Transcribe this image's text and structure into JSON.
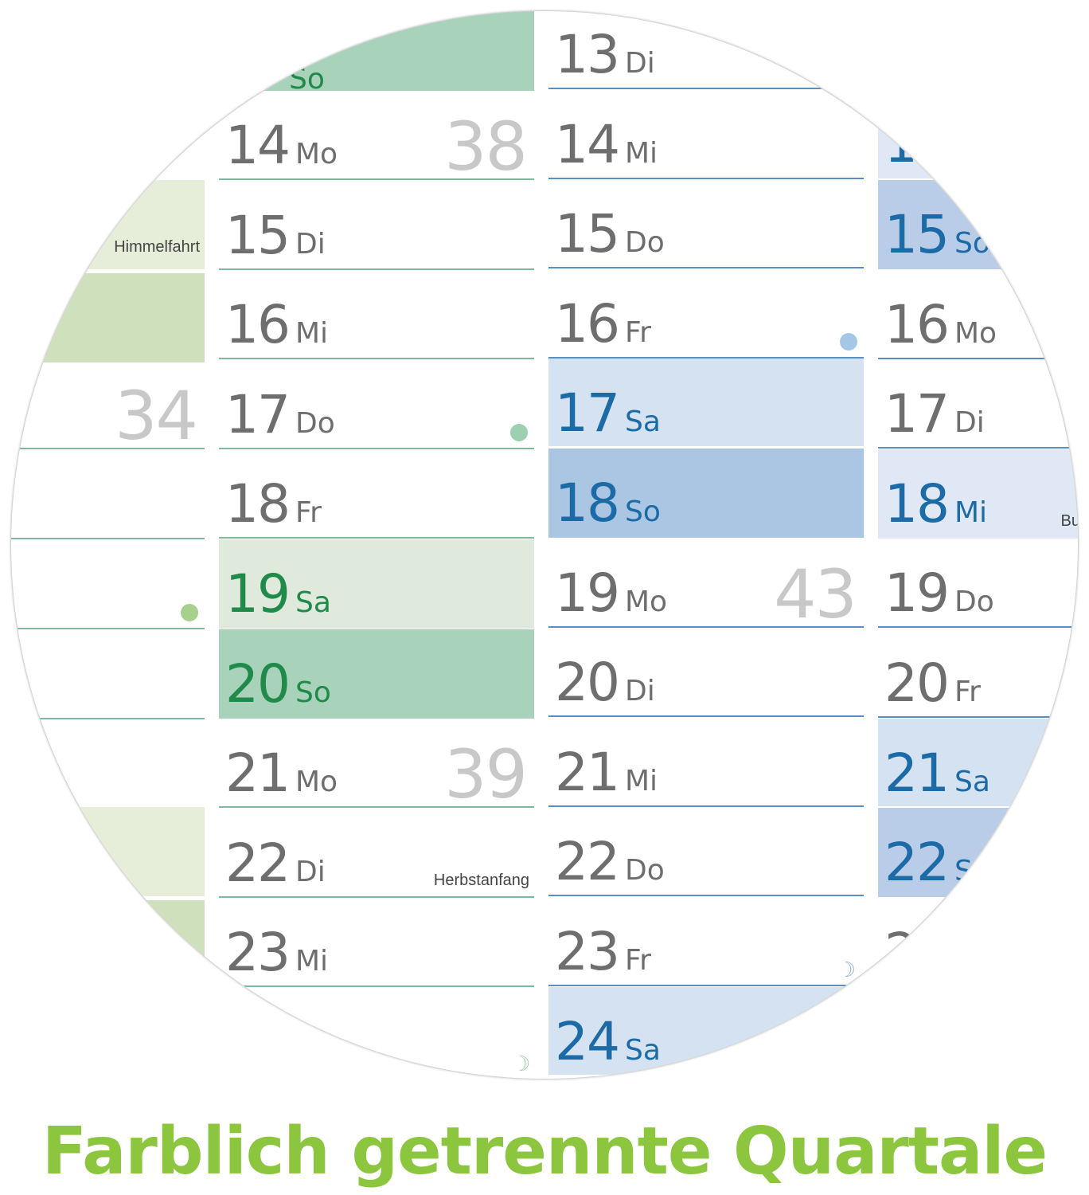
{
  "colors": {
    "green_sat": "#dfeadc",
    "green_sun": "#a9d2bb",
    "green_light": "#e6eed9",
    "green_mid": "#cfe0bc",
    "blue_sat": "#d5e2f1",
    "blue_sun": "#aac6e2",
    "green_line": "#7fb89a",
    "blue_line": "#5a8fc2",
    "green_dot": "#9cd0b0",
    "blue_dot": "#a5c7e6"
  },
  "col_prev": {
    "holiday": "Himmelfahrt",
    "week": "34"
  },
  "col_sep": {
    "top_day": "So",
    "days": [
      {
        "n": "14",
        "d": "Mo",
        "wk": "38"
      },
      {
        "n": "15",
        "d": "Di"
      },
      {
        "n": "16",
        "d": "Mi"
      },
      {
        "n": "17",
        "d": "Do",
        "dot": true
      },
      {
        "n": "18",
        "d": "Fr"
      },
      {
        "n": "19",
        "d": "Sa"
      },
      {
        "n": "20",
        "d": "So"
      },
      {
        "n": "21",
        "d": "Mo",
        "wk": "39"
      },
      {
        "n": "22",
        "d": "Di",
        "note": "Herbstanfang"
      },
      {
        "n": "23",
        "d": "Mi"
      }
    ],
    "moon": "☽"
  },
  "col_oct": {
    "days": [
      {
        "n": "13",
        "d": "Di"
      },
      {
        "n": "14",
        "d": "Mi"
      },
      {
        "n": "15",
        "d": "Do"
      },
      {
        "n": "16",
        "d": "Fr",
        "dot": true
      },
      {
        "n": "17",
        "d": "Sa"
      },
      {
        "n": "18",
        "d": "So"
      },
      {
        "n": "19",
        "d": "Mo",
        "wk": "43"
      },
      {
        "n": "20",
        "d": "Di"
      },
      {
        "n": "21",
        "d": "Mi"
      },
      {
        "n": "22",
        "d": "Do"
      },
      {
        "n": "23",
        "d": "Fr",
        "moon": "☽"
      },
      {
        "n": "24",
        "d": "Sa"
      }
    ]
  },
  "col_nov": {
    "top_num": "1",
    "days": [
      {
        "n": "15",
        "d": "So"
      },
      {
        "n": "16",
        "d": "Mo"
      },
      {
        "n": "17",
        "d": "Di"
      },
      {
        "n": "18",
        "d": "Mi",
        "note": "Bu"
      },
      {
        "n": "19",
        "d": "Do"
      },
      {
        "n": "20",
        "d": "Fr"
      },
      {
        "n": "21",
        "d": "Sa"
      },
      {
        "n": "22",
        "d": "S"
      },
      {
        "n": "2",
        "d": ""
      }
    ]
  },
  "footer": "Farblich getrennte Quartale"
}
